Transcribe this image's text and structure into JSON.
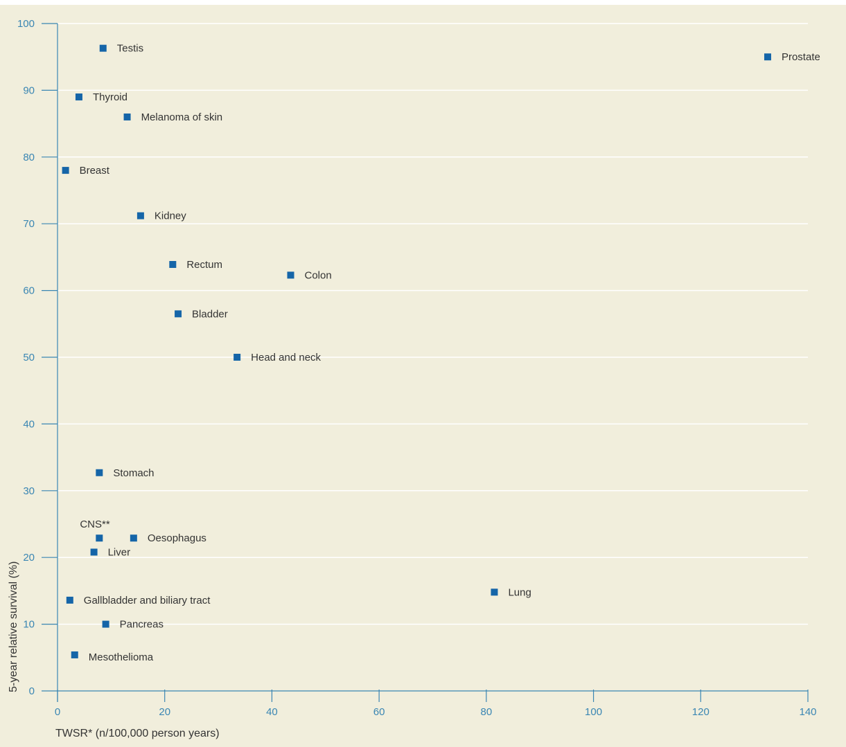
{
  "chart_data": {
    "type": "scatter",
    "xlabel": "TWSR* (n/100,000 person years)",
    "ylabel": "5-year relative survival (%)",
    "xlim": [
      0,
      140
    ],
    "ylim": [
      0,
      100
    ],
    "x_ticks": [
      0,
      20,
      40,
      60,
      80,
      100,
      120,
      140
    ],
    "y_ticks": [
      0,
      10,
      20,
      30,
      40,
      50,
      60,
      70,
      80,
      90,
      100
    ],
    "grid": "horizontal",
    "colors": {
      "marker": "#1565a8",
      "axis": "#3a86b3",
      "tick_text": "#3a86b3",
      "panel": "#f1eedc",
      "grid": "#ffffff"
    },
    "points": [
      {
        "label": "Testis",
        "x": 8.5,
        "y": 96.3
      },
      {
        "label": "Prostate",
        "x": 132.5,
        "y": 95.0
      },
      {
        "label": "Thyroid",
        "x": 4.0,
        "y": 89.0
      },
      {
        "label": "Melanoma of skin",
        "x": 13.0,
        "y": 86.0
      },
      {
        "label": "Breast",
        "x": 1.5,
        "y": 78.0
      },
      {
        "label": "Kidney",
        "x": 15.5,
        "y": 71.2
      },
      {
        "label": "Rectum",
        "x": 21.5,
        "y": 63.9
      },
      {
        "label": "Colon",
        "x": 43.5,
        "y": 62.3
      },
      {
        "label": "Bladder",
        "x": 22.5,
        "y": 56.5
      },
      {
        "label": "Head and neck",
        "x": 33.5,
        "y": 50.0
      },
      {
        "label": "Stomach",
        "x": 7.8,
        "y": 32.7
      },
      {
        "label": "CNS**",
        "x": 7.8,
        "y": 22.9
      },
      {
        "label": "Oesophagus",
        "x": 14.2,
        "y": 22.9
      },
      {
        "label": "Liver",
        "x": 6.8,
        "y": 20.8
      },
      {
        "label": "Lung",
        "x": 81.5,
        "y": 14.8
      },
      {
        "label": "Gallbladder and biliary tract",
        "x": 2.3,
        "y": 13.6
      },
      {
        "label": "Pancreas",
        "x": 9.0,
        "y": 10.0
      },
      {
        "label": "Mesothelioma",
        "x": 3.2,
        "y": 5.4
      }
    ]
  }
}
